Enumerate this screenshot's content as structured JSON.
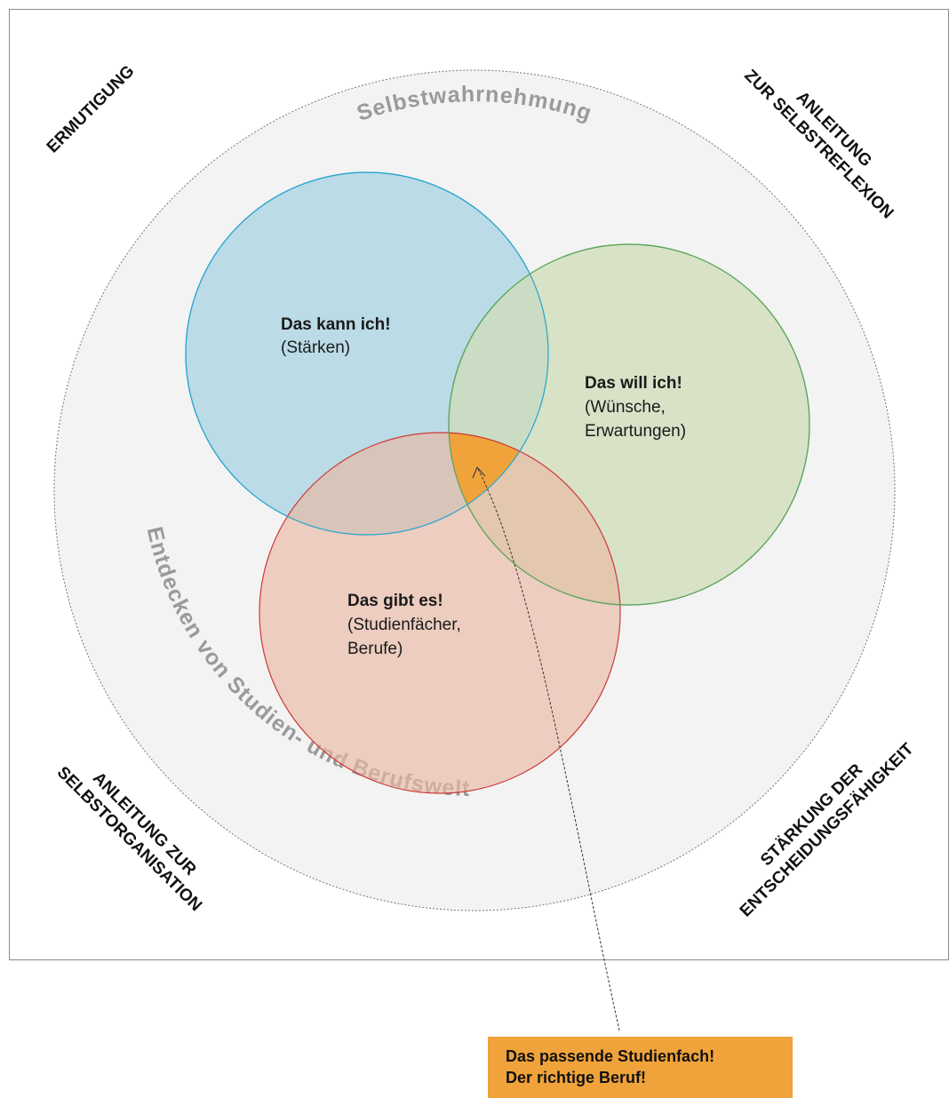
{
  "corners": {
    "top_left": "ERMUTIGUNG",
    "top_right_line1": "ANLEITUNG",
    "top_right_line2": "ZUR SELBSTREFLEXION",
    "bottom_left_line1": "ANLEITUNG ZUR",
    "bottom_left_line2": "SELBSTORGANISATION",
    "bottom_right_line1": "STÄRKUNG DER",
    "bottom_right_line2": "ENTSCHEIDUNGSFÄHIGKEIT"
  },
  "ring": {
    "top": "Selbstwahrnehmung",
    "bottom": "Entdecken von Studien- und Berufswelt"
  },
  "circles": {
    "strengths": {
      "title": "Das kann ich!",
      "line1": "(Stärken)",
      "color": "#b5d8e4",
      "stroke": "#2aa5cf"
    },
    "wishes": {
      "title": "Das will ich!",
      "line1": "(Wünsche,",
      "line2": "Erwartungen)",
      "color": "#d3dfc0",
      "stroke": "#5aa55a"
    },
    "options": {
      "title": "Das gibt es!",
      "line1": "(Studienfächer,",
      "line2": "Berufe)",
      "color": "#eec6b6",
      "stroke": "#cc3a3a"
    }
  },
  "result": {
    "line1": "Das passende Studienfach!",
    "line2": "Der richtige Beruf!",
    "color": "#f0a33a"
  }
}
